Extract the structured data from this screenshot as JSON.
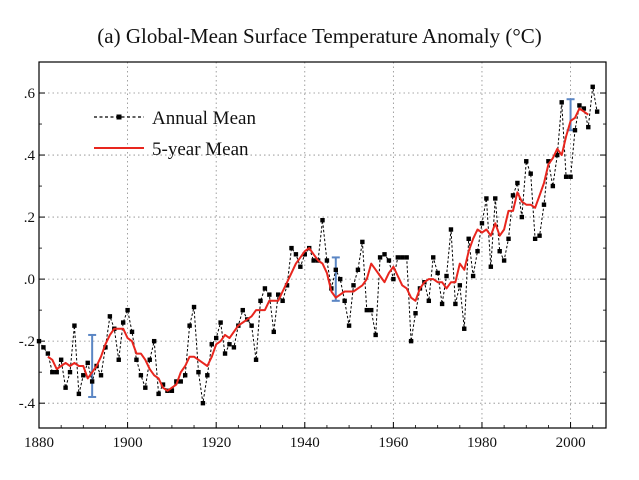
{
  "chart_data": {
    "type": "line",
    "title": "(a)  Global-Mean Surface Temperature Anomaly (°C)",
    "xlabel": "",
    "ylabel": "",
    "xlim": [
      1880,
      2008
    ],
    "ylim": [
      -0.48,
      0.7
    ],
    "x_ticks": [
      1880,
      1900,
      1920,
      1940,
      1960,
      1980,
      2000
    ],
    "x_tick_labels": [
      "1880",
      "1900",
      "1920",
      "1940",
      "1960",
      "1980",
      "2000"
    ],
    "y_ticks": [
      -0.4,
      -0.2,
      0.0,
      0.2,
      0.4,
      0.6
    ],
    "y_tick_labels": [
      "-.4",
      "-.2",
      ".0",
      ".2",
      ".4",
      ".6"
    ],
    "grid": true,
    "legend_placement": "top-left",
    "series": [
      {
        "name": "Annual Mean",
        "style": "dashed-with-markers",
        "color": "#000000",
        "x": [
          1880,
          1881,
          1882,
          1883,
          1884,
          1885,
          1886,
          1887,
          1888,
          1889,
          1890,
          1891,
          1892,
          1893,
          1894,
          1895,
          1896,
          1897,
          1898,
          1899,
          1900,
          1901,
          1902,
          1903,
          1904,
          1905,
          1906,
          1907,
          1908,
          1909,
          1910,
          1911,
          1912,
          1913,
          1914,
          1915,
          1916,
          1917,
          1918,
          1919,
          1920,
          1921,
          1922,
          1923,
          1924,
          1925,
          1926,
          1927,
          1928,
          1929,
          1930,
          1931,
          1932,
          1933,
          1934,
          1935,
          1936,
          1937,
          1938,
          1939,
          1940,
          1941,
          1942,
          1943,
          1944,
          1945,
          1946,
          1947,
          1948,
          1949,
          1950,
          1951,
          1952,
          1953,
          1954,
          1955,
          1956,
          1957,
          1958,
          1959,
          1960,
          1961,
          1962,
          1963,
          1964,
          1965,
          1966,
          1967,
          1968,
          1969,
          1970,
          1971,
          1972,
          1973,
          1974,
          1975,
          1976,
          1977,
          1978,
          1979,
          1980,
          1981,
          1982,
          1983,
          1984,
          1985,
          1986,
          1987,
          1988,
          1989,
          1990,
          1991,
          1992,
          1993,
          1994,
          1995,
          1996,
          1997,
          1998,
          1999,
          2000,
          2001,
          2002,
          2003,
          2004,
          2005,
          2006
        ],
        "values": [
          -0.2,
          -0.22,
          -0.24,
          -0.3,
          -0.3,
          -0.26,
          -0.35,
          -0.3,
          -0.15,
          -0.37,
          -0.31,
          -0.27,
          -0.33,
          -0.28,
          -0.31,
          -0.22,
          -0.12,
          -0.16,
          -0.26,
          -0.14,
          -0.1,
          -0.17,
          -0.26,
          -0.31,
          -0.35,
          -0.26,
          -0.2,
          -0.37,
          -0.34,
          -0.36,
          -0.36,
          -0.33,
          -0.33,
          -0.31,
          -0.15,
          -0.09,
          -0.3,
          -0.4,
          -0.31,
          -0.21,
          -0.19,
          -0.14,
          -0.24,
          -0.21,
          -0.22,
          -0.15,
          -0.1,
          -0.13,
          -0.15,
          -0.26,
          -0.07,
          -0.03,
          -0.05,
          -0.17,
          -0.05,
          -0.07,
          -0.02,
          0.1,
          0.08,
          0.04,
          0.08,
          0.1,
          0.06,
          0.06,
          0.19,
          0.06,
          -0.03,
          0.03,
          0.0,
          -0.07,
          -0.15,
          -0.02,
          0.03,
          0.12,
          -0.1,
          -0.1,
          -0.18,
          0.07,
          0.08,
          0.06,
          0.0,
          0.07,
          0.07,
          0.07,
          -0.2,
          -0.11,
          -0.03,
          -0.01,
          -0.07,
          0.07,
          0.02,
          -0.08,
          0.01,
          0.16,
          -0.08,
          -0.02,
          -0.16,
          0.13,
          0.01,
          0.09,
          0.18,
          0.26,
          0.04,
          0.26,
          0.09,
          0.06,
          0.13,
          0.27,
          0.31,
          0.2,
          0.38,
          0.34,
          0.13,
          0.14,
          0.24,
          0.38,
          0.3,
          0.4,
          0.57,
          0.33,
          0.33,
          0.48,
          0.56,
          0.55,
          0.49,
          0.62,
          0.54
        ]
      },
      {
        "name": "5-year Mean",
        "style": "solid",
        "color": "#e8261e",
        "x": [
          1882,
          1883,
          1884,
          1885,
          1886,
          1887,
          1888,
          1889,
          1890,
          1891,
          1892,
          1893,
          1894,
          1895,
          1896,
          1897,
          1898,
          1899,
          1900,
          1901,
          1902,
          1903,
          1904,
          1905,
          1906,
          1907,
          1908,
          1909,
          1910,
          1911,
          1912,
          1913,
          1914,
          1915,
          1916,
          1917,
          1918,
          1919,
          1920,
          1921,
          1922,
          1923,
          1924,
          1925,
          1926,
          1927,
          1928,
          1929,
          1930,
          1931,
          1932,
          1933,
          1934,
          1935,
          1936,
          1937,
          1938,
          1939,
          1940,
          1941,
          1942,
          1943,
          1944,
          1945,
          1946,
          1947,
          1948,
          1949,
          1950,
          1951,
          1952,
          1953,
          1954,
          1955,
          1956,
          1957,
          1958,
          1959,
          1960,
          1961,
          1962,
          1963,
          1964,
          1965,
          1966,
          1967,
          1968,
          1969,
          1970,
          1971,
          1972,
          1973,
          1974,
          1975,
          1976,
          1977,
          1978,
          1979,
          1980,
          1981,
          1982,
          1983,
          1984,
          1985,
          1986,
          1987,
          1988,
          1989,
          1990,
          1991,
          1992,
          1993,
          1994,
          1995,
          1996,
          1997,
          1998,
          1999,
          2000,
          2001,
          2002,
          2003,
          2004
        ],
        "values": [
          -0.25,
          -0.26,
          -0.29,
          -0.28,
          -0.27,
          -0.28,
          -0.27,
          -0.28,
          -0.28,
          -0.32,
          -0.3,
          -0.28,
          -0.25,
          -0.21,
          -0.18,
          -0.16,
          -0.16,
          -0.16,
          -0.19,
          -0.2,
          -0.24,
          -0.24,
          -0.26,
          -0.29,
          -0.31,
          -0.32,
          -0.35,
          -0.36,
          -0.35,
          -0.34,
          -0.3,
          -0.28,
          -0.25,
          -0.25,
          -0.26,
          -0.27,
          -0.28,
          -0.25,
          -0.21,
          -0.2,
          -0.18,
          -0.19,
          -0.17,
          -0.15,
          -0.14,
          -0.13,
          -0.12,
          -0.1,
          -0.1,
          -0.1,
          -0.07,
          -0.07,
          -0.07,
          -0.04,
          -0.01,
          0.02,
          0.05,
          0.07,
          0.09,
          0.1,
          0.08,
          0.06,
          0.05,
          0.02,
          -0.04,
          -0.06,
          -0.05,
          -0.04,
          -0.04,
          -0.04,
          -0.03,
          -0.02,
          0.0,
          0.05,
          0.03,
          0.01,
          -0.01,
          0.02,
          0.04,
          0.01,
          -0.02,
          -0.03,
          -0.06,
          -0.07,
          -0.03,
          -0.01,
          0.0,
          0.0,
          -0.01,
          -0.01,
          -0.03,
          -0.01,
          -0.01,
          0.05,
          0.03,
          0.09,
          0.13,
          0.16,
          0.15,
          0.16,
          0.14,
          0.18,
          0.14,
          0.16,
          0.22,
          0.22,
          0.28,
          0.25,
          0.24,
          0.24,
          0.23,
          0.27,
          0.31,
          0.37,
          0.39,
          0.42,
          0.4,
          0.46,
          0.51,
          0.52,
          0.55,
          0.54,
          0.53
        ]
      }
    ],
    "error_bars": [
      {
        "x": 1892,
        "low": -0.38,
        "high": -0.18,
        "color": "#5b86c4"
      },
      {
        "x": 1947,
        "low": -0.07,
        "high": 0.07,
        "color": "#5b86c4"
      },
      {
        "x": 2000,
        "low": 0.48,
        "high": 0.58,
        "color": "#5b86c4"
      }
    ]
  }
}
